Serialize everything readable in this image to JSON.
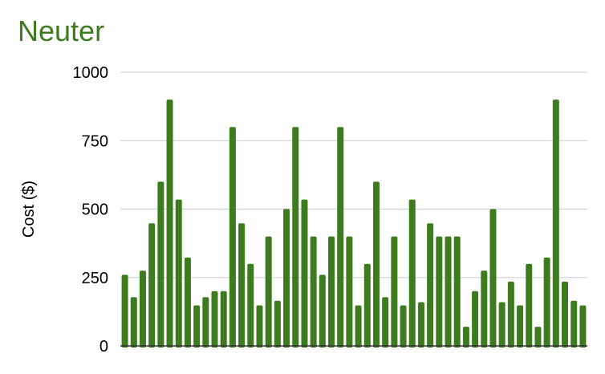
{
  "chart_data": {
    "type": "bar",
    "title": "Neuter",
    "xlabel": "",
    "ylabel": "Cost ($)",
    "ylim": [
      0,
      1000
    ],
    "yticks": [
      0,
      250,
      500,
      750,
      1000
    ],
    "grid": true,
    "legend": "none",
    "values": [
      260,
      178,
      275,
      448,
      600,
      900,
      535,
      323,
      148,
      178,
      200,
      200,
      800,
      448,
      300,
      148,
      400,
      165,
      500,
      800,
      535,
      400,
      260,
      400,
      800,
      400,
      148,
      300,
      600,
      178,
      400,
      148,
      535,
      160,
      448,
      400,
      400,
      400,
      70,
      200,
      275,
      500,
      160,
      235,
      148,
      300,
      70,
      323,
      900,
      235,
      165,
      148
    ]
  },
  "colors": {
    "bar": "#3d7b1f",
    "title": "#3d7b1f",
    "gridline": "#cccccc",
    "axis": "#333333"
  }
}
